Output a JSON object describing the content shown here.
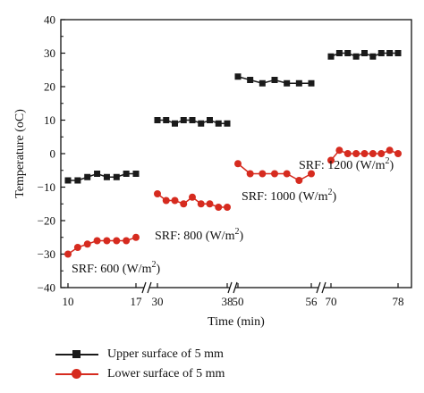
{
  "chart_data": {
    "type": "line",
    "xlabel": "Time (min)",
    "ylabel": "Temperature (oC)",
    "ylim": [
      -40,
      40
    ],
    "yticks": [
      "40",
      "30",
      "20",
      "10",
      "0",
      "−10",
      "−20",
      "−30",
      "−40"
    ],
    "segments": [
      {
        "start": 10,
        "end": 17,
        "x_labels": [
          "10",
          "17"
        ]
      },
      {
        "start": 30,
        "end": 38,
        "x_labels": [
          "30",
          "38"
        ]
      },
      {
        "start": 50,
        "end": 56,
        "x_labels": [
          "50",
          "56"
        ]
      },
      {
        "start": 70,
        "end": 78,
        "x_labels": [
          "70",
          "78"
        ]
      }
    ],
    "axis_break": true,
    "grid": false,
    "legend_position": "below",
    "annotations": [
      "SRF: 600 (W/m2)",
      "SRF: 800 (W/m2)",
      "SRF: 1000 (W/m2)",
      "SRF: 1200 (W/m2)"
    ],
    "series": [
      {
        "name": "Upper surface of 5 mm",
        "color": "#1a1a1a",
        "marker": "square",
        "segments": [
          {
            "x": [
              10,
              11,
              12,
              13,
              14,
              15,
              16,
              17
            ],
            "y": [
              -8,
              -8,
              -7,
              -6,
              -7,
              -7,
              -6,
              -6
            ]
          },
          {
            "x": [
              30,
              31,
              32,
              33,
              34,
              35,
              36,
              37,
              38
            ],
            "y": [
              10,
              10,
              9,
              10,
              10,
              9,
              10,
              9,
              9
            ]
          },
          {
            "x": [
              50,
              51,
              52,
              53,
              54,
              55,
              56
            ],
            "y": [
              23,
              22,
              21,
              22,
              21,
              21,
              21
            ]
          },
          {
            "x": [
              70,
              71,
              72,
              73,
              74,
              75,
              76,
              77,
              78
            ],
            "y": [
              29,
              30,
              30,
              29,
              30,
              29,
              30,
              30,
              30
            ]
          }
        ]
      },
      {
        "name": "Lower surface of 5 mm",
        "color": "#d62b1f",
        "marker": "circle",
        "segments": [
          {
            "x": [
              10,
              11,
              12,
              13,
              14,
              15,
              16,
              17
            ],
            "y": [
              -30,
              -28,
              -27,
              -26,
              -26,
              -26,
              -26,
              -25
            ]
          },
          {
            "x": [
              30,
              31,
              32,
              33,
              34,
              35,
              36,
              37,
              38
            ],
            "y": [
              -12,
              -14,
              -14,
              -15,
              -13,
              -15,
              -15,
              -16,
              -16
            ]
          },
          {
            "x": [
              50,
              51,
              52,
              53,
              54,
              55,
              56
            ],
            "y": [
              -3,
              -6,
              -6,
              -6,
              -6,
              -8,
              -6
            ]
          },
          {
            "x": [
              70,
              71,
              72,
              73,
              74,
              75,
              76,
              77,
              78
            ],
            "y": [
              -2,
              1,
              0,
              0,
              0,
              0,
              0,
              1,
              0
            ]
          }
        ]
      }
    ]
  }
}
